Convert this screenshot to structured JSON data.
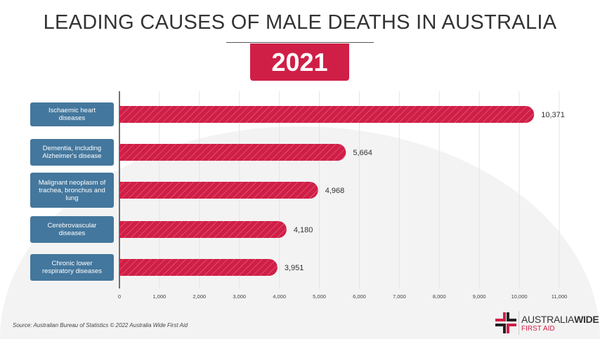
{
  "title": "LEADING CAUSES OF MALE DEATHS IN AUSTRALIA",
  "year": "2021",
  "source": "Source: Australian Bureau of Statistics © 2022 Australia Wide First Aid",
  "logo": {
    "word1": "AUSTRALIA",
    "word1_bold": "WIDE",
    "word2": "FIRST AID"
  },
  "colors": {
    "bar": "#d01f47",
    "label_box": "#44779d",
    "text": "#333333"
  },
  "chart_data": {
    "type": "bar",
    "orientation": "horizontal",
    "title": "LEADING CAUSES OF MALE DEATHS IN AUSTRALIA",
    "subtitle": "2021",
    "categories": [
      "Ischaemic heart diseases",
      "Dementia, including Alzheimer's disease",
      "Malignant neoplasm of trachea, bronchus and lung",
      "Cerebrovascular diseases",
      "Chronic lower respiratory diseases"
    ],
    "values": [
      10371,
      5664,
      4968,
      4180,
      3951
    ],
    "data_labels": [
      "10,371",
      "5,664",
      "4,968",
      "4,180",
      "3,951"
    ],
    "xlim": [
      0,
      11000
    ],
    "xticks": [
      0,
      1000,
      2000,
      3000,
      4000,
      5000,
      6000,
      7000,
      8000,
      9000,
      10000,
      11000
    ],
    "xtick_labels": [
      "0",
      "1,000",
      "2,000",
      "3,000",
      "4,000",
      "5,000",
      "6,000",
      "7,000",
      "8,000",
      "9,000",
      "10,000",
      "11,000"
    ],
    "grid": true,
    "legend": "none"
  }
}
